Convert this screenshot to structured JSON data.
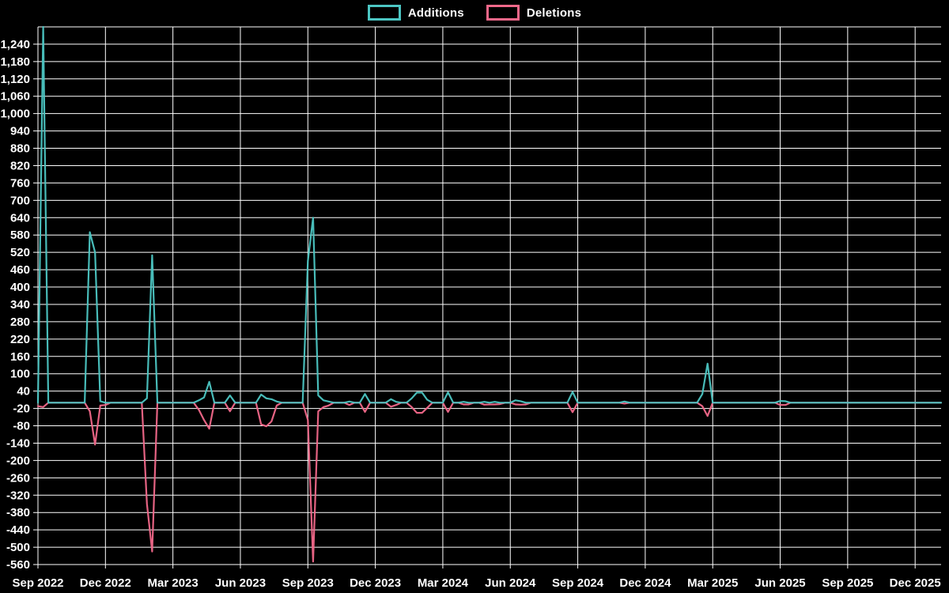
{
  "colors": {
    "background": "#000000",
    "grid": "#ffffff",
    "text": "#ffffff",
    "additions": "#4cc6c3",
    "deletions": "#f2688a"
  },
  "legend": {
    "items": [
      {
        "label": "Additions",
        "color": "#4cc6c3"
      },
      {
        "label": "Deletions",
        "color": "#f2688a"
      }
    ]
  },
  "chart_data": {
    "type": "line",
    "title": "",
    "xlabel": "",
    "ylabel": "",
    "legend_position": "top-center",
    "grid": true,
    "x_axis": {
      "labels": [
        "Sep 2022",
        "Dec 2022",
        "Mar 2023",
        "Jun 2023",
        "Sep 2023",
        "Dec 2023",
        "Mar 2024",
        "Jun 2024",
        "Sep 2024",
        "Dec 2024",
        "Mar 2025",
        "Jun 2025",
        "Sep 2025",
        "Dec 2025"
      ],
      "weeks_per_label": 13,
      "unit": "week"
    },
    "y_axis": {
      "min": -560,
      "max": 1300,
      "tick_max": 1240,
      "tick_step": 60,
      "tick_labels": [
        "1,240",
        "1,180",
        "1,120",
        "1,060",
        "1,000",
        "940",
        "880",
        "820",
        "760",
        "700",
        "640",
        "580",
        "520",
        "460",
        "400",
        "340",
        "280",
        "220",
        "160",
        "100",
        "40",
        "-20",
        "-80",
        "-140",
        "-200",
        "-260",
        "-320",
        "-380",
        "-440",
        "-500",
        "-560"
      ]
    },
    "week_count": 175,
    "points_format": "[week_index, value]; weeks not listed have value 0",
    "series": [
      {
        "name": "Additions",
        "color": "#4cc6c3",
        "points": [
          [
            1,
            1310
          ],
          [
            10,
            590
          ],
          [
            11,
            520
          ],
          [
            12,
            5
          ],
          [
            21,
            15
          ],
          [
            22,
            510
          ],
          [
            31,
            8
          ],
          [
            32,
            18
          ],
          [
            33,
            72
          ],
          [
            37,
            25
          ],
          [
            43,
            28
          ],
          [
            44,
            15
          ],
          [
            45,
            12
          ],
          [
            46,
            4
          ],
          [
            52,
            490
          ],
          [
            53,
            640
          ],
          [
            54,
            25
          ],
          [
            55,
            8
          ],
          [
            56,
            4
          ],
          [
            60,
            4
          ],
          [
            63,
            30
          ],
          [
            68,
            12
          ],
          [
            69,
            3
          ],
          [
            72,
            15
          ],
          [
            73,
            35
          ],
          [
            74,
            35
          ],
          [
            75,
            10
          ],
          [
            79,
            36
          ],
          [
            82,
            3
          ],
          [
            86,
            3
          ],
          [
            88,
            3
          ],
          [
            92,
            8
          ],
          [
            93,
            5
          ],
          [
            103,
            37
          ],
          [
            113,
            4
          ],
          [
            128,
            30
          ],
          [
            129,
            135
          ],
          [
            143,
            6
          ],
          [
            144,
            5
          ]
        ]
      },
      {
        "name": "Deletions",
        "color": "#f2688a",
        "points": [
          [
            0,
            -12
          ],
          [
            1,
            -15
          ],
          [
            10,
            -30
          ],
          [
            11,
            -145
          ],
          [
            12,
            -10
          ],
          [
            13,
            -8
          ],
          [
            21,
            -350
          ],
          [
            22,
            -515
          ],
          [
            31,
            -25
          ],
          [
            32,
            -60
          ],
          [
            33,
            -90
          ],
          [
            37,
            -30
          ],
          [
            43,
            -75
          ],
          [
            44,
            -82
          ],
          [
            45,
            -65
          ],
          [
            46,
            -10
          ],
          [
            52,
            -60
          ],
          [
            53,
            -550
          ],
          [
            54,
            -30
          ],
          [
            55,
            -15
          ],
          [
            56,
            -10
          ],
          [
            60,
            -8
          ],
          [
            63,
            -32
          ],
          [
            68,
            -14
          ],
          [
            69,
            -8
          ],
          [
            72,
            -15
          ],
          [
            73,
            -35
          ],
          [
            74,
            -35
          ],
          [
            75,
            -18
          ],
          [
            79,
            -32
          ],
          [
            82,
            -6
          ],
          [
            83,
            -6
          ],
          [
            86,
            -7
          ],
          [
            87,
            -6
          ],
          [
            88,
            -6
          ],
          [
            89,
            -5
          ],
          [
            92,
            -6
          ],
          [
            93,
            -7
          ],
          [
            94,
            -6
          ],
          [
            103,
            -33
          ],
          [
            113,
            -3
          ],
          [
            128,
            -12
          ],
          [
            129,
            -46
          ],
          [
            143,
            -8
          ],
          [
            144,
            -8
          ]
        ]
      }
    ]
  }
}
